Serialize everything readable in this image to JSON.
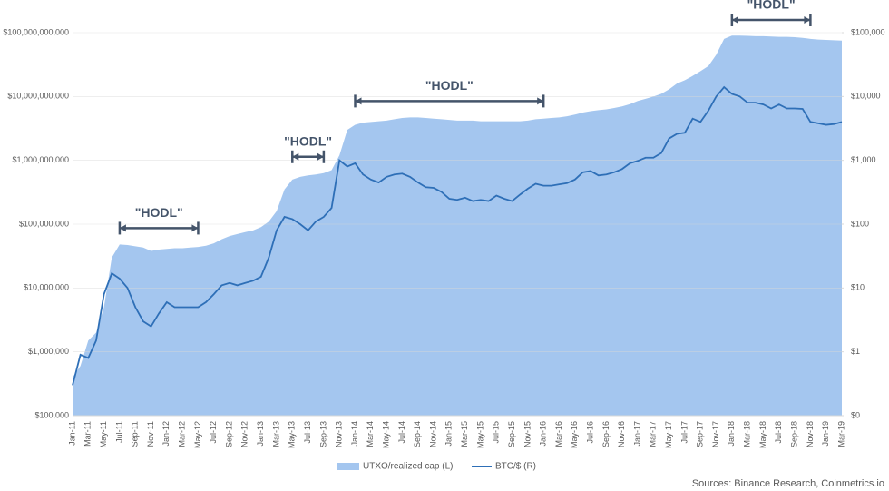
{
  "chart_data": {
    "type": "area-line",
    "source": "Sources: Binance Research, Coinmetrics.io",
    "log_scale": true,
    "grid": true,
    "legend": "bottom",
    "categories": [
      "Jan-11",
      null,
      "Mar-11",
      null,
      "May-11",
      null,
      "Jul-11",
      null,
      "Sep-11",
      null,
      "Nov-11",
      null,
      "Jan-12",
      null,
      "Mar-12",
      null,
      "May-12",
      null,
      "Jul-12",
      null,
      "Sep-12",
      null,
      "Nov-12",
      null,
      "Jan-13",
      null,
      "Mar-13",
      null,
      "May-13",
      null,
      "Jul-13",
      null,
      "Sep-13",
      null,
      "Nov-13",
      null,
      "Jan-14",
      null,
      "Mar-14",
      null,
      "May-14",
      null,
      "Jul-14",
      null,
      "Sep-14",
      null,
      "Nov-14",
      null,
      "Jan-15",
      null,
      "Mar-15",
      null,
      "May-15",
      null,
      "Jul-15",
      null,
      "Sep-15",
      null,
      "Nov-15",
      null,
      "Jan-16",
      null,
      "Mar-16",
      null,
      "May-16",
      null,
      "Jul-16",
      null,
      "Sep-16",
      null,
      "Nov-16",
      null,
      "Jan-17",
      null,
      "Mar-17",
      null,
      "May-17",
      null,
      "Jul-17",
      null,
      "Sep-17",
      null,
      "Nov-17",
      null,
      "Jan-18",
      null,
      "Mar-18",
      null,
      "May-18",
      null,
      "Jul-18",
      null,
      "Sep-18",
      null,
      "Nov-18",
      null,
      "Jan-19",
      null,
      "Mar-19"
    ],
    "series": [
      {
        "name": "UTXO/realized cap (L)",
        "color": "#a4c6ef",
        "values": [
          400000,
          600000,
          1500000,
          2000000,
          5000000,
          30000000,
          48000000,
          47000000,
          45000000,
          43000000,
          38000000,
          40000000,
          41000000,
          42000000,
          42000000,
          43000000,
          44000000,
          46000000,
          50000000,
          58000000,
          65000000,
          70000000,
          75000000,
          80000000,
          90000000,
          110000000,
          160000000,
          350000000,
          500000000,
          550000000,
          580000000,
          600000000,
          630000000,
          700000000,
          1200000000,
          3000000000,
          3600000000,
          3900000000,
          4000000000,
          4100000000,
          4200000000,
          4400000000,
          4600000000,
          4700000000,
          4700000000,
          4600000000,
          4500000000,
          4400000000,
          4300000000,
          4200000000,
          4200000000,
          4200000000,
          4100000000,
          4100000000,
          4100000000,
          4100000000,
          4100000000,
          4100000000,
          4200000000,
          4400000000,
          4500000000,
          4600000000,
          4700000000,
          4900000000,
          5200000000,
          5600000000,
          5900000000,
          6100000000,
          6300000000,
          6600000000,
          7000000000,
          7600000000,
          8500000000,
          9200000000,
          10000000000,
          11000000000,
          13000000000,
          16000000000,
          18000000000,
          21000000000,
          25000000000,
          30000000000,
          45000000000,
          80000000000,
          90000000000,
          90000000000,
          89000000000,
          88000000000,
          88000000000,
          87000000000,
          86000000000,
          86000000000,
          85000000000,
          83000000000,
          80000000000,
          78000000000,
          77000000000,
          76000000000,
          75000000000
        ]
      },
      {
        "name": "BTC/$ (R)",
        "color": "#2e6fb7",
        "axis": "y2",
        "values": [
          0.3,
          0.9,
          0.8,
          1.5,
          8,
          17,
          14,
          10,
          5,
          3,
          2.5,
          4,
          6,
          5,
          5,
          5,
          5,
          6,
          8,
          11,
          12,
          11,
          12,
          13,
          15,
          30,
          80,
          130,
          120,
          100,
          80,
          110,
          130,
          180,
          1000,
          800,
          900,
          600,
          500,
          450,
          550,
          600,
          620,
          550,
          450,
          380,
          370,
          320,
          250,
          240,
          260,
          230,
          240,
          230,
          280,
          250,
          230,
          290,
          360,
          430,
          400,
          400,
          420,
          440,
          500,
          650,
          680,
          580,
          600,
          650,
          730,
          900,
          980,
          1100,
          1100,
          1300,
          2200,
          2600,
          2700,
          4500,
          4000,
          6000,
          10000,
          14000,
          11000,
          10000,
          8000,
          8000,
          7500,
          6500,
          7500,
          6500,
          6500,
          6400,
          4000,
          3800,
          3600,
          3700,
          4000
        ]
      }
    ],
    "ylim": [
      100000,
      100000000000
    ],
    "yticks": [
      {
        "value": 100000,
        "label": "$100,000"
      },
      {
        "value": 1000000,
        "label": "$1,000,000"
      },
      {
        "value": 10000000,
        "label": "$10,000,000"
      },
      {
        "value": 100000000,
        "label": "$100,000,000"
      },
      {
        "value": 1000000000,
        "label": "$1,000,000,000"
      },
      {
        "value": 10000000000,
        "label": "$10,000,000,000"
      },
      {
        "value": 100000000000,
        "label": "$100,000,000,000"
      }
    ],
    "y2lim": [
      0.1,
      100000
    ],
    "y2ticks": [
      {
        "value": 0.1,
        "label": "$0"
      },
      {
        "value": 1,
        "label": "$1"
      },
      {
        "value": 10,
        "label": "$10"
      },
      {
        "value": 100,
        "label": "$100"
      },
      {
        "value": 1000,
        "label": "$1,000"
      },
      {
        "value": 10000,
        "label": "$10,000"
      },
      {
        "value": 100000,
        "label": "$100,000"
      }
    ],
    "annotations": [
      {
        "text": "\"HODL\"",
        "from": "Jul-11",
        "to": "May-12"
      },
      {
        "text": "\"HODL\"",
        "from": "May-13",
        "to": "Sep-13"
      },
      {
        "text": "\"HODL\"",
        "from": "Jan-14",
        "to": "Jan-16"
      },
      {
        "text": "\"HODL\"",
        "from": "Jan-18",
        "to": "Nov-18"
      }
    ]
  }
}
